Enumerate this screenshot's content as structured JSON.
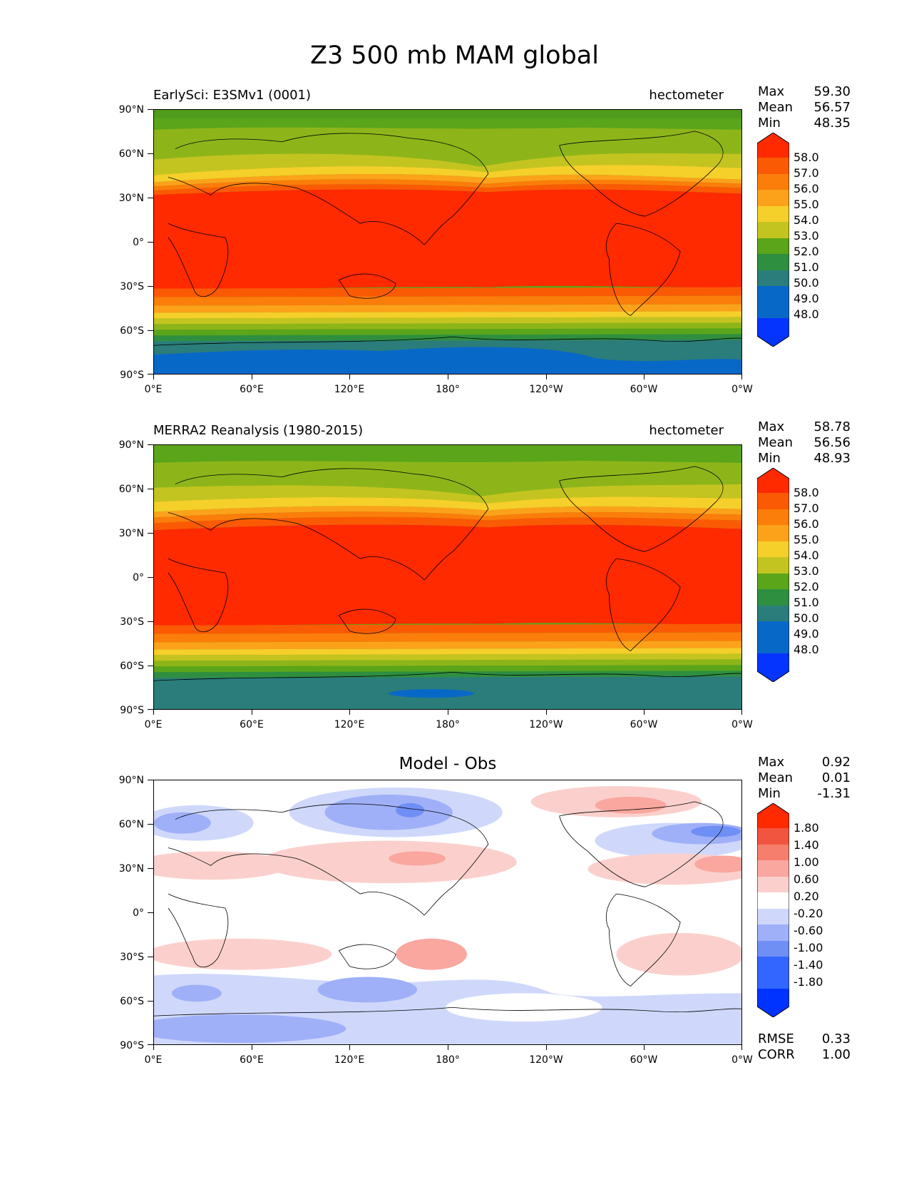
{
  "figure_title": "Z3 500 mb MAM global",
  "x_tick_labels": [
    "0°E",
    "60°E",
    "120°E",
    "180°",
    "120°W",
    "60°W",
    "0°W"
  ],
  "y_tick_labels": [
    "90°N",
    "60°N",
    "30°N",
    "0°",
    "30°S",
    "60°S",
    "90°S"
  ],
  "panels": [
    {
      "title_left": "EarlySci: E3SMv1 (0001)",
      "title_right": "hectometer",
      "stats": {
        "max_label": "Max",
        "max": "59.30",
        "mean_label": "Mean",
        "mean": "56.57",
        "min_label": "Min",
        "min": "48.35"
      },
      "colorbar_labels": [
        "58.0",
        "57.0",
        "56.0",
        "55.0",
        "54.0",
        "53.0",
        "52.0",
        "51.0",
        "50.0",
        "49.0",
        "48.0"
      ]
    },
    {
      "title_left": "MERRA2 Reanalysis (1980-2015)",
      "title_right": "hectometer",
      "stats": {
        "max_label": "Max",
        "max": "58.78",
        "mean_label": "Mean",
        "mean": "56.56",
        "min_label": "Min",
        "min": "48.93"
      },
      "colorbar_labels": [
        "58.0",
        "57.0",
        "56.0",
        "55.0",
        "54.0",
        "53.0",
        "52.0",
        "51.0",
        "50.0",
        "49.0",
        "48.0"
      ]
    },
    {
      "title_center": "Model - Obs",
      "stats": {
        "max_label": "Max",
        "max": "0.92",
        "mean_label": "Mean",
        "mean": "0.01",
        "min_label": "Min",
        "min": "-1.31"
      },
      "colorbar_labels": [
        "1.80",
        "1.40",
        "1.00",
        "0.60",
        "0.20",
        "-0.20",
        "-0.60",
        "-1.00",
        "-1.40",
        "-1.80"
      ],
      "metrics": {
        "rmse_label": "RMSE",
        "rmse": "0.33",
        "corr_label": "CORR",
        "corr": "1.00"
      }
    }
  ],
  "colors": {
    "field": [
      "#0534ff",
      "#0868c8",
      "#2a7d7a",
      "#2f8f40",
      "#5aa51a",
      "#8db51a",
      "#c4c420",
      "#f5cf2a",
      "#fba21a",
      "#fb7d0a",
      "#fb5a04",
      "#ff2a00"
    ],
    "diff": [
      "#0033ff",
      "#3366ff",
      "#6f8ff5",
      "#9fb0f8",
      "#cfd8fb",
      "#ffffff",
      "#fbd0cc",
      "#f9a79f",
      "#f57e6d",
      "#f2553f",
      "#ff2a00"
    ]
  }
}
